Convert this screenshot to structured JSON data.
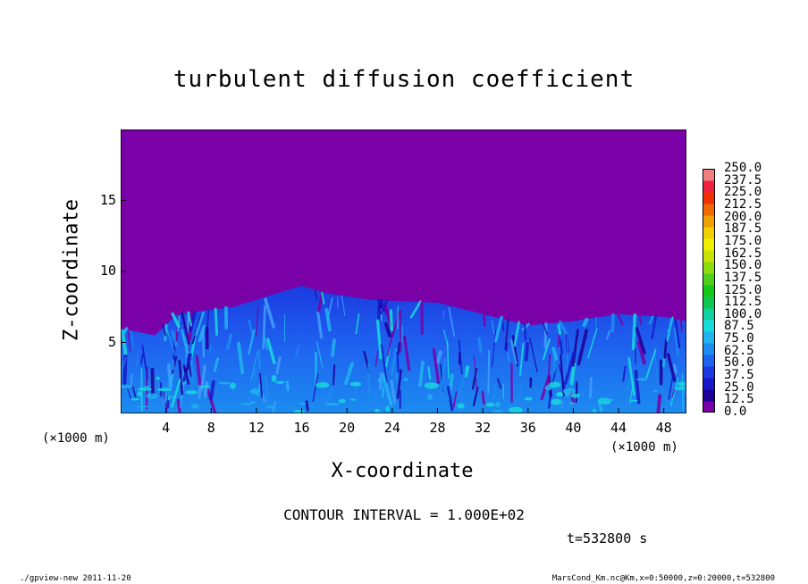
{
  "chart_data": {
    "type": "heatmap",
    "title": "turbulent diffusion coefficient",
    "xlabel": "X-coordinate",
    "ylabel": "Z-coordinate",
    "x_unit_label": "(×1000 m)",
    "xlim": [
      0,
      50
    ],
    "ylim": [
      0,
      20
    ],
    "x_ticks": [
      "4",
      "8",
      "12",
      "16",
      "20",
      "24",
      "28",
      "32",
      "36",
      "40",
      "44",
      "48"
    ],
    "x_tick_values": [
      4,
      8,
      12,
      16,
      20,
      24,
      28,
      32,
      36,
      40,
      44,
      48
    ],
    "y_ticks": [
      "5",
      "10",
      "15"
    ],
    "y_tick_values": [
      5,
      10,
      15
    ],
    "colorbar_levels": [
      "0.0",
      "12.5",
      "25.0",
      "37.5",
      "50.0",
      "62.5",
      "75.0",
      "87.5",
      "100.0",
      "112.5",
      "125.0",
      "137.5",
      "150.0",
      "162.5",
      "175.0",
      "187.5",
      "200.0",
      "212.5",
      "225.0",
      "237.5",
      "250.0"
    ],
    "colorbar_colors": [
      "#7a00a8",
      "#1e0096",
      "#1818c8",
      "#1c3ae0",
      "#1e64f0",
      "#1c8cf0",
      "#20b4f0",
      "#18dcdc",
      "#10d2a0",
      "#10c850",
      "#18c818",
      "#50d018",
      "#8cdc10",
      "#c8e400",
      "#f0f000",
      "#f0d000",
      "#f0a000",
      "#f06800",
      "#f03000",
      "#f02040",
      "#f08080"
    ],
    "background_color": "#7a00a8",
    "turbulent_layer": {
      "description_values": "Km values 0-75 within boundary layer",
      "top_heights_km": [
        [
          0,
          6.0
        ],
        [
          3,
          5.5
        ],
        [
          5,
          7.0
        ],
        [
          10,
          7.5
        ],
        [
          14,
          8.5
        ],
        [
          16,
          9.0
        ],
        [
          18,
          8.5
        ],
        [
          22,
          8.0
        ],
        [
          28,
          7.8
        ],
        [
          32,
          7.0
        ],
        [
          36,
          6.2
        ],
        [
          40,
          6.5
        ],
        [
          44,
          7.0
        ],
        [
          48,
          6.8
        ],
        [
          50,
          6.5
        ]
      ]
    }
  },
  "contour_interval": "CONTOUR INTERVAL = 1.000E+02",
  "time_label": "t=532800 s",
  "footer_left": "./gpview-new   2011-11-20",
  "footer_right": "MarsCond_Km.nc@Km,x=0:50000,z=0:20000,t=532800"
}
